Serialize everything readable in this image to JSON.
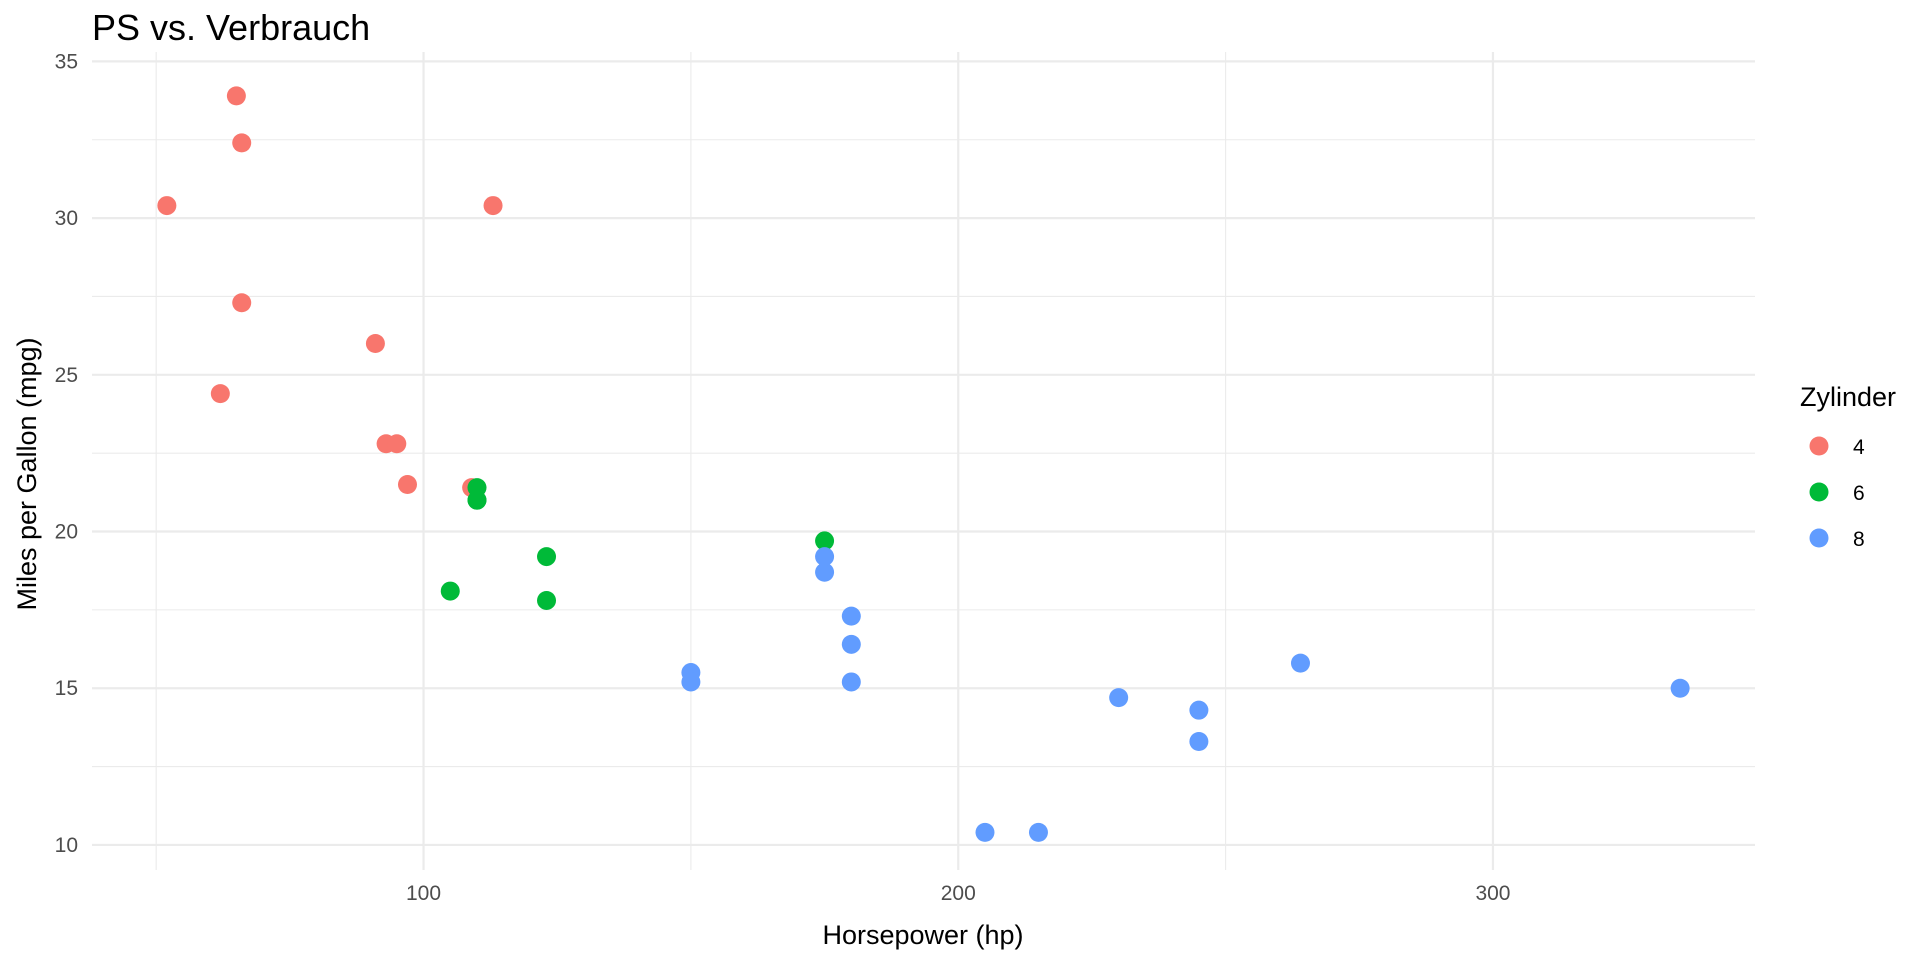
{
  "chart_data": {
    "type": "scatter",
    "title": "PS vs. Verbrauch",
    "xlabel": "Horsepower (hp)",
    "ylabel": "Miles per Gallon (mpg)",
    "xlim": [
      38,
      349
    ],
    "ylim": [
      9.2,
      35.3
    ],
    "x_major_ticks": [
      100,
      200,
      300
    ],
    "x_minor_ticks": [
      50,
      150,
      250
    ],
    "y_major_ticks": [
      10,
      15,
      20,
      25,
      30,
      35
    ],
    "y_minor_ticks": [
      12.5,
      17.5,
      22.5,
      27.5,
      32.5
    ],
    "grid": true,
    "legend": {
      "title": "Zylinder",
      "placement": "right"
    },
    "series": [
      {
        "name": "4",
        "color": "#F8766D",
        "points": [
          {
            "x": 52,
            "y": 30.4
          },
          {
            "x": 62,
            "y": 24.4
          },
          {
            "x": 65,
            "y": 33.9
          },
          {
            "x": 66,
            "y": 32.4
          },
          {
            "x": 66,
            "y": 27.3
          },
          {
            "x": 91,
            "y": 26.0
          },
          {
            "x": 93,
            "y": 22.8
          },
          {
            "x": 95,
            "y": 22.8
          },
          {
            "x": 97,
            "y": 21.5
          },
          {
            "x": 109,
            "y": 21.4
          },
          {
            "x": 113,
            "y": 30.4
          }
        ]
      },
      {
        "name": "6",
        "color": "#00BA38",
        "points": [
          {
            "x": 105,
            "y": 18.1
          },
          {
            "x": 110,
            "y": 21.0
          },
          {
            "x": 110,
            "y": 21.0
          },
          {
            "x": 110,
            "y": 21.4
          },
          {
            "x": 123,
            "y": 19.2
          },
          {
            "x": 123,
            "y": 17.8
          },
          {
            "x": 175,
            "y": 19.7
          }
        ]
      },
      {
        "name": "8",
        "color": "#619CFF",
        "points": [
          {
            "x": 150,
            "y": 15.5
          },
          {
            "x": 150,
            "y": 15.2
          },
          {
            "x": 175,
            "y": 18.7
          },
          {
            "x": 175,
            "y": 19.2
          },
          {
            "x": 180,
            "y": 16.4
          },
          {
            "x": 180,
            "y": 17.3
          },
          {
            "x": 180,
            "y": 15.2
          },
          {
            "x": 205,
            "y": 10.4
          },
          {
            "x": 215,
            "y": 10.4
          },
          {
            "x": 230,
            "y": 14.7
          },
          {
            "x": 245,
            "y": 14.3
          },
          {
            "x": 245,
            "y": 13.3
          },
          {
            "x": 264,
            "y": 15.8
          },
          {
            "x": 335,
            "y": 15.0
          }
        ]
      }
    ]
  }
}
